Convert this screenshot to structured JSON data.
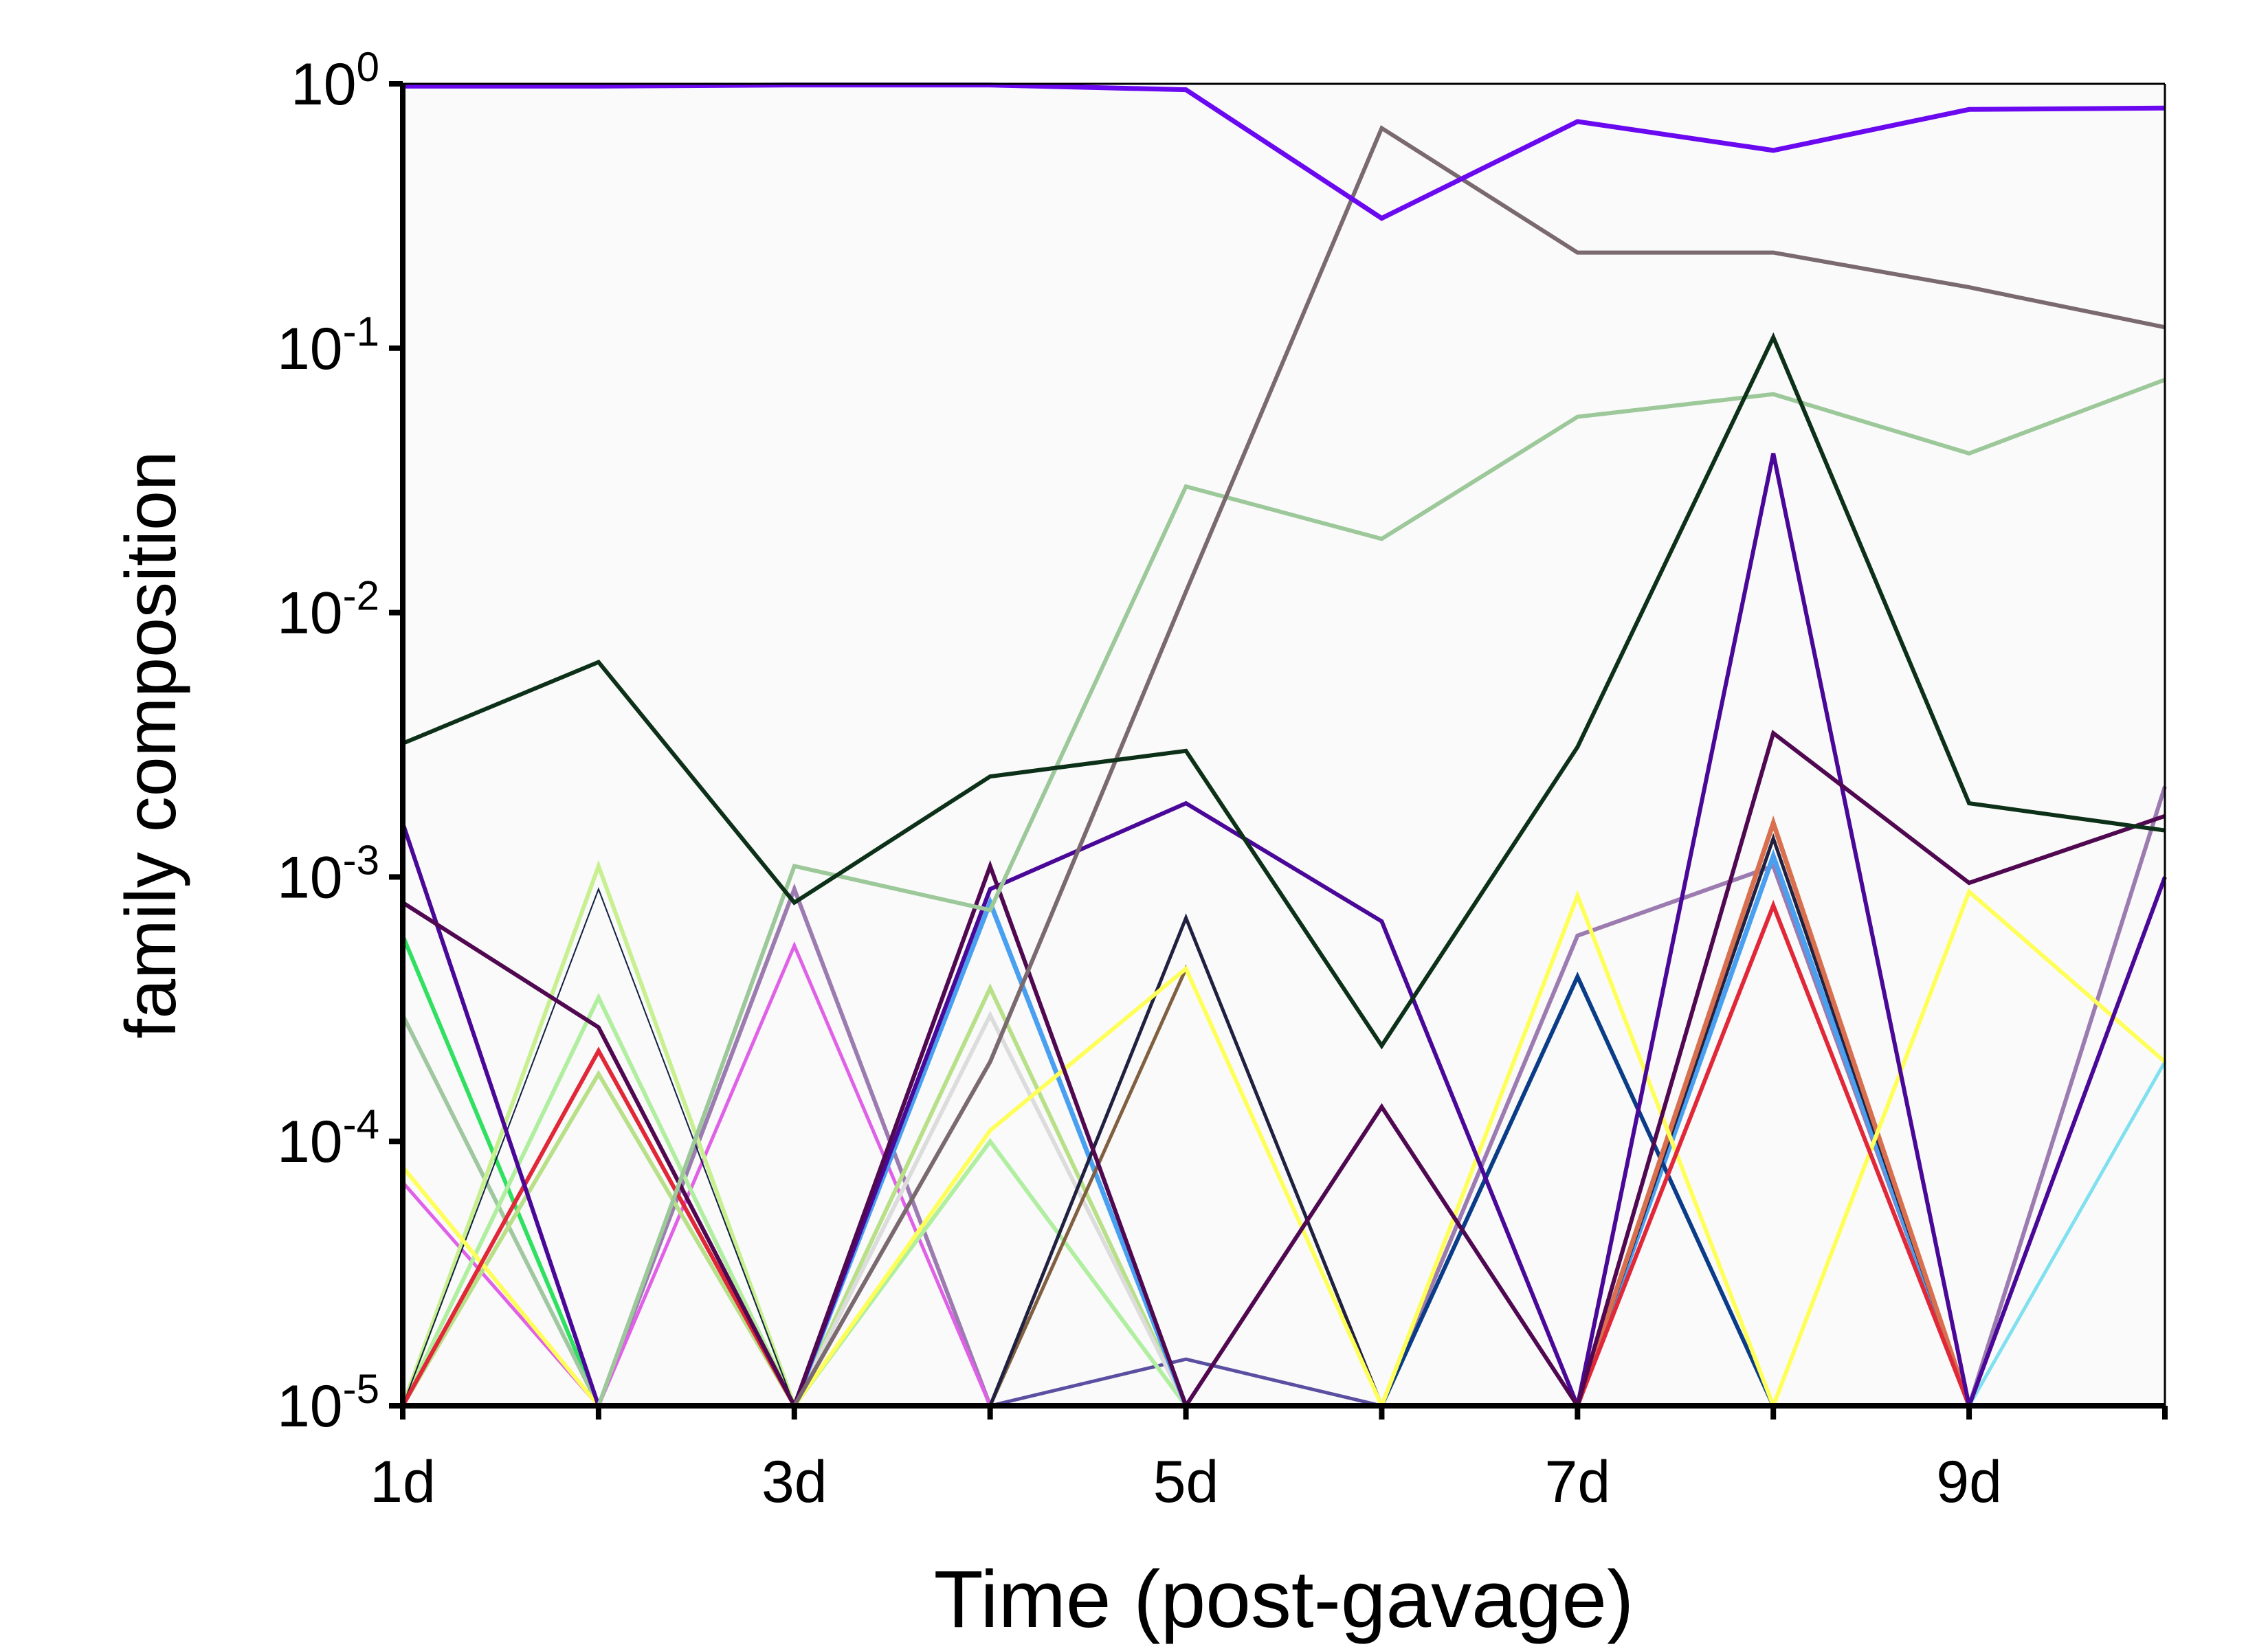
{
  "chart_data": {
    "type": "line",
    "title": "",
    "xlabel": "Time (post-gavage)",
    "ylabel": "family composition",
    "yscale": "log",
    "ylim": [
      1e-05,
      1
    ],
    "xlim": [
      1,
      10
    ],
    "grid": false,
    "legend": "none",
    "x": [
      1,
      2,
      3,
      4,
      5,
      6,
      7,
      8,
      9,
      10
    ],
    "x_ticks": [
      {
        "value": 1,
        "label": "1d"
      },
      {
        "value": 3,
        "label": "3d"
      },
      {
        "value": 5,
        "label": "5d"
      },
      {
        "value": 7,
        "label": "7d"
      },
      {
        "value": 9,
        "label": "9d"
      }
    ],
    "x_minor_ticks": [
      2,
      4,
      6,
      8,
      10
    ],
    "y_ticks": [
      {
        "value": 1,
        "base": "10",
        "exp": "0"
      },
      {
        "value": 0.1,
        "base": "10",
        "exp": "-1"
      },
      {
        "value": 0.01,
        "base": "10",
        "exp": "-2"
      },
      {
        "value": 0.001,
        "base": "10",
        "exp": "-3"
      },
      {
        "value": 0.0001,
        "base": "10",
        "exp": "-4"
      },
      {
        "value": 1e-05,
        "base": "10",
        "exp": "-5"
      }
    ],
    "series": [
      {
        "color": "#00a8d8",
        "width": 2,
        "values": [
          1e-05,
          1e-05,
          1e-05,
          0.0003,
          1e-05,
          1e-05,
          1e-05,
          1e-05,
          1e-05,
          0.0002
        ]
      },
      {
        "color": "#7fe0f0",
        "width": 5,
        "values": [
          1e-05,
          1e-05,
          1e-05,
          1e-05,
          1e-05,
          1e-05,
          1e-05,
          1e-05,
          1e-05,
          0.0002
        ]
      },
      {
        "color": "#5a4fa0",
        "width": 5,
        "values": [
          1e-05,
          1e-05,
          1e-05,
          1e-05,
          1.5e-05,
          1e-05,
          1e-05,
          1e-05,
          1e-05,
          1e-05
        ]
      },
      {
        "color": "#9c7bb0",
        "width": 6,
        "values": [
          1e-05,
          1e-05,
          0.0009,
          1e-05,
          1e-05,
          1e-05,
          0.0006,
          0.0011,
          1e-05,
          0.0022
        ]
      },
      {
        "color": "#e060e8",
        "width": 5,
        "values": [
          7e-05,
          1e-05,
          0.00055,
          1e-05,
          1e-05,
          1e-05,
          1e-05,
          1e-05,
          1e-05,
          1e-05
        ]
      },
      {
        "color": "#30e060",
        "width": 6,
        "values": [
          0.0006,
          1e-05,
          1e-05,
          1e-05,
          1e-05,
          1e-05,
          1e-05,
          1e-05,
          1e-05,
          1e-05
        ]
      },
      {
        "color": "#a0c8a0",
        "width": 6,
        "values": [
          0.0003,
          1e-05,
          1e-05,
          1e-05,
          1e-05,
          1e-05,
          1e-05,
          1e-05,
          1e-05,
          1e-05
        ]
      },
      {
        "color": "#b0eea0",
        "width": 6,
        "values": [
          1e-05,
          0.00035,
          1e-05,
          0.0001,
          1e-05,
          1e-05,
          1e-05,
          1e-05,
          1e-05,
          1e-05
        ]
      },
      {
        "color": "#b8e088",
        "width": 6,
        "values": [
          1e-05,
          0.00018,
          1e-05,
          0.00038,
          1e-05,
          1e-05,
          1e-05,
          1e-05,
          1e-05,
          1e-05
        ]
      },
      {
        "color": "#c8f090",
        "width": 6,
        "values": [
          1e-05,
          0.0011,
          1e-05,
          1e-05,
          1e-05,
          1e-05,
          1e-05,
          1e-05,
          1e-05,
          1e-05
        ]
      },
      {
        "color": "#102040",
        "width": 2,
        "values": [
          1e-05,
          0.0009,
          1e-05,
          1e-05,
          1e-05,
          1e-05,
          1e-05,
          1e-05,
          1e-05,
          1e-05
        ]
      },
      {
        "color": "#dcdcdc",
        "width": 6,
        "values": [
          1e-05,
          1e-05,
          1e-05,
          0.0003,
          1e-05,
          1e-05,
          1e-05,
          1e-05,
          1e-05,
          1e-05
        ]
      },
      {
        "color": "#4aa0f0",
        "width": 7,
        "values": [
          1e-05,
          1e-05,
          1e-05,
          0.0008,
          1e-05,
          1e-05,
          1e-05,
          0.0012,
          1e-05,
          1e-05
        ]
      },
      {
        "color": "#806040",
        "width": 5,
        "values": [
          1e-05,
          1e-05,
          1e-05,
          1e-05,
          0.00045,
          1e-05,
          1e-05,
          1e-05,
          1e-05,
          1e-05
        ]
      },
      {
        "color": "#202040",
        "width": 5,
        "values": [
          1e-05,
          1e-05,
          1e-05,
          1e-05,
          0.0007,
          1e-05,
          1e-05,
          0.0014,
          1e-05,
          1e-05
        ]
      },
      {
        "color": "#0a3c88",
        "width": 6,
        "values": [
          1e-05,
          1e-05,
          1e-05,
          1e-05,
          1e-05,
          1e-05,
          0.00042,
          1e-05,
          1e-05,
          1e-05
        ]
      },
      {
        "color": "#d87050",
        "width": 7,
        "values": [
          1e-05,
          1e-05,
          1e-05,
          1e-05,
          1e-05,
          1e-05,
          1e-05,
          0.0016,
          1e-05,
          1e-05
        ]
      },
      {
        "color": "#ffff5a",
        "width": 6,
        "values": [
          8e-05,
          1e-05,
          1e-05,
          0.00011,
          0.00045,
          1e-05,
          0.00085,
          1e-05,
          0.00088,
          0.0002
        ]
      },
      {
        "color": "#e02838",
        "width": 6,
        "values": [
          1e-05,
          0.00022,
          1e-05,
          1e-05,
          1e-05,
          1e-05,
          1e-05,
          0.00078,
          1e-05,
          1e-05
        ]
      },
      {
        "color": "#4a0898",
        "width": 6,
        "values": [
          0.0016,
          1e-05,
          1e-05,
          0.0009,
          0.0019,
          0.00068,
          1e-05,
          0.04,
          1e-05,
          0.001
        ]
      },
      {
        "color": "#500850",
        "width": 6,
        "values": [
          0.0008,
          0.00027,
          1e-05,
          0.0011,
          1e-05,
          0.000135,
          1e-05,
          0.0035,
          0.00095,
          0.0017
        ]
      },
      {
        "color": "#9cc89a",
        "width": 6,
        "values": [
          1e-05,
          1e-05,
          0.0011,
          0.00075,
          0.03,
          0.019,
          0.055,
          0.067,
          0.04,
          0.076
        ]
      },
      {
        "color": "#7a6a70",
        "width": 6,
        "values": [
          1e-05,
          1e-05,
          1e-05,
          0.0002,
          0.012,
          0.68,
          0.23,
          0.23,
          0.17,
          0.12
        ]
      },
      {
        "color": "#0c3018",
        "width": 6,
        "values": [
          0.0032,
          0.0065,
          0.0008,
          0.0024,
          0.003,
          0.00023,
          0.0031,
          0.11,
          0.0019,
          0.0015
        ]
      },
      {
        "color": "#6a08f0",
        "width": 7,
        "values": [
          0.98,
          0.98,
          0.99,
          0.99,
          0.95,
          0.31,
          0.72,
          0.56,
          0.8,
          0.81
        ]
      }
    ]
  }
}
